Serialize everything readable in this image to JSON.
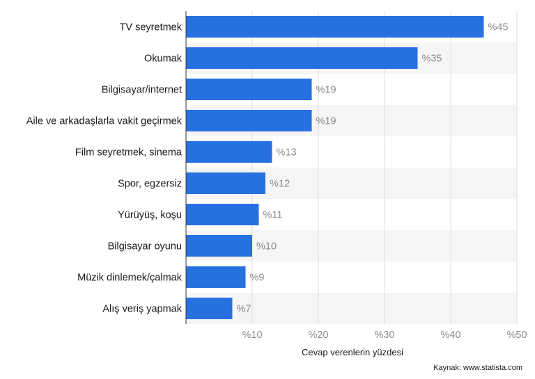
{
  "chart_data": {
    "type": "bar",
    "orientation": "horizontal",
    "categories": [
      "TV seyretmek",
      "Okumak",
      "Bilgisayar/internet",
      "Aile ve arkadaşlarla vakit geçirmek",
      "Film seyretmek, sinema",
      "Spor, egzersiz",
      "Yürüyüş, koşu",
      "Bilgisayar oyunu",
      "Müzik dinlemek/çalmak",
      "Alış veriş yapmak"
    ],
    "values": [
      45,
      35,
      19,
      19,
      13,
      12,
      11,
      10,
      9,
      7
    ],
    "value_labels": [
      "%45",
      "%35",
      "%19",
      "%19",
      "%13",
      "%12",
      "%11",
      "%10",
      "%9",
      "%7"
    ],
    "xlabel": "Cevap verenlerin yüzdesi",
    "xlim": [
      0,
      50
    ],
    "x_ticks": [
      10,
      20,
      30,
      40,
      50
    ],
    "x_tick_labels": [
      "%10",
      "%20",
      "%30",
      "%40",
      "%50"
    ],
    "grid": true,
    "bar_color": "#2770e0",
    "band_color": "#f5f5f5"
  },
  "source": "Kaynak: www.statista.com"
}
